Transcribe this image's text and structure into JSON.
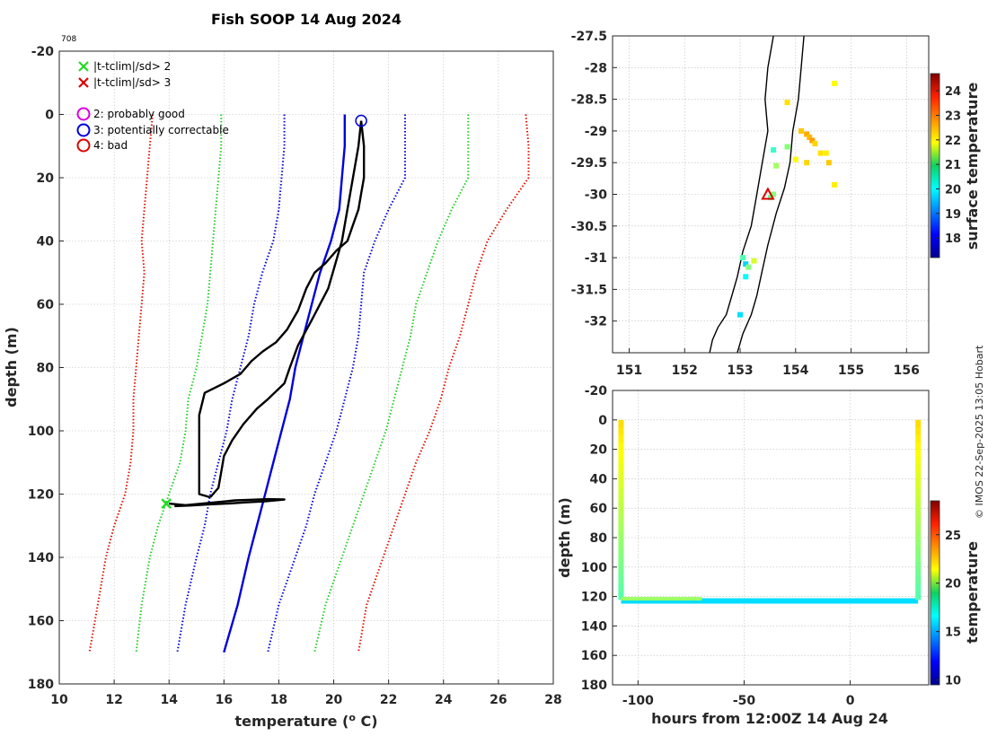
{
  "page": {
    "title": "Fish SOOP 14 Aug 2024",
    "profile_id": "708",
    "credit": "© IMOS 22-Sep-2025 13:05 Hobart"
  },
  "colors": {
    "black": "#000000",
    "green": "#22cc22",
    "blue": "#0000dd",
    "red": "#dd1100",
    "magenta": "#dd00dd",
    "triangle_red": "#dd0000"
  },
  "legend": {
    "items": [
      {
        "marker": "x",
        "color": "#22dd22",
        "label": "|t-tclim|/sd> 2"
      },
      {
        "marker": "x",
        "color": "#dd0000",
        "label": "|t-tclim|/sd> 3"
      },
      {
        "marker": "o",
        "color": "#dd00dd",
        "label": "2: probably good"
      },
      {
        "marker": "o",
        "color": "#0000dd",
        "label": "3: potentially correctable"
      },
      {
        "marker": "o",
        "color": "#dd0000",
        "label": "4: bad"
      }
    ]
  },
  "chart_data": [
    {
      "type": "line",
      "name": "profile",
      "xlabel": "temperature (° C)",
      "ylabel": "depth (m)",
      "xlim": [
        10,
        28
      ],
      "ylim": [
        -20,
        180
      ],
      "y_reversed": true,
      "xticks": [
        10,
        12,
        14,
        16,
        18,
        20,
        22,
        24,
        26,
        28
      ],
      "yticks": [
        -20,
        0,
        20,
        40,
        60,
        80,
        100,
        120,
        140,
        160,
        180
      ],
      "grid": true,
      "series": [
        {
          "name": "climatology mean",
          "color": "#0000dd",
          "style": "solid",
          "x": [
            20.4,
            20.4,
            20.3,
            20.2,
            19.9,
            19.5,
            19.2,
            18.9,
            18.6,
            18.4,
            18.1,
            17.8,
            17.5,
            17.2,
            16.9,
            16.5,
            16.0
          ],
          "y": [
            0,
            10,
            20,
            30,
            40,
            50,
            60,
            70,
            80,
            90,
            100,
            110,
            120,
            130,
            140,
            155,
            170
          ]
        },
        {
          "name": "mean - 2sd",
          "color": "#0000dd",
          "style": "dotted",
          "x": [
            18.2,
            18.2,
            18.1,
            18.0,
            17.8,
            17.4,
            17.1,
            16.9,
            16.6,
            16.3,
            16.1,
            15.8,
            15.5,
            15.3,
            15.0,
            14.6,
            14.3
          ],
          "y": [
            0,
            10,
            20,
            30,
            40,
            50,
            60,
            70,
            80,
            90,
            100,
            110,
            120,
            130,
            140,
            155,
            170
          ]
        },
        {
          "name": "mean + 2sd",
          "color": "#0000dd",
          "style": "dotted",
          "x": [
            22.6,
            22.6,
            22.6,
            22.0,
            21.5,
            21.1,
            21.0,
            20.9,
            20.7,
            20.4,
            20.1,
            19.7,
            19.3,
            19.0,
            18.6,
            18.0,
            17.6
          ],
          "y": [
            0,
            10,
            20,
            30,
            40,
            50,
            60,
            70,
            80,
            90,
            100,
            110,
            120,
            130,
            140,
            155,
            170
          ]
        },
        {
          "name": "mean - 3sd",
          "color": "#22cc22",
          "style": "dotted",
          "x": [
            15.9,
            15.9,
            15.8,
            15.7,
            15.6,
            15.5,
            15.4,
            15.2,
            15.0,
            14.7,
            14.6,
            14.4,
            14.0,
            13.6,
            13.3,
            13.0,
            12.8
          ],
          "y": [
            0,
            10,
            20,
            30,
            40,
            50,
            60,
            70,
            80,
            90,
            100,
            110,
            120,
            130,
            140,
            155,
            170
          ]
        },
        {
          "name": "mean + 3sd",
          "color": "#22cc22",
          "style": "dotted",
          "x": [
            24.9,
            24.9,
            24.9,
            24.3,
            23.8,
            23.4,
            23.0,
            22.8,
            22.5,
            22.2,
            21.9,
            21.5,
            21.1,
            20.7,
            20.3,
            19.7,
            19.3
          ],
          "y": [
            0,
            10,
            20,
            30,
            40,
            50,
            60,
            70,
            80,
            90,
            100,
            110,
            120,
            130,
            140,
            155,
            170
          ]
        },
        {
          "name": "mean - 4sd",
          "color": "#dd1100",
          "style": "dotted",
          "x": [
            13.4,
            13.3,
            13.2,
            13.1,
            13.0,
            13.1,
            13.0,
            12.9,
            12.8,
            12.7,
            12.7,
            12.6,
            12.4,
            12.0,
            11.7,
            11.4,
            11.1
          ],
          "y": [
            0,
            10,
            20,
            30,
            40,
            50,
            60,
            70,
            80,
            90,
            100,
            110,
            120,
            130,
            140,
            155,
            170
          ]
        },
        {
          "name": "mean + 4sd",
          "color": "#dd1100",
          "style": "dotted",
          "x": [
            27.0,
            27.1,
            27.1,
            26.3,
            25.6,
            25.2,
            24.9,
            24.6,
            24.2,
            23.9,
            23.5,
            23.0,
            22.6,
            22.2,
            21.8,
            21.2,
            20.9
          ],
          "y": [
            0,
            10,
            20,
            30,
            40,
            50,
            60,
            70,
            80,
            90,
            100,
            110,
            120,
            130,
            140,
            155,
            170
          ]
        },
        {
          "name": "profile down",
          "color": "#000000",
          "style": "solid",
          "x": [
            21.0,
            21.1,
            21.1,
            21.0,
            20.9,
            20.7,
            20.5,
            20.1,
            19.7,
            19.3,
            19.0,
            18.7,
            18.3,
            17.9,
            17.4,
            17.0,
            16.6,
            16.0,
            15.3,
            15.1,
            15.1,
            15.1,
            15.5
          ],
          "y": [
            2,
            10,
            20,
            25,
            30,
            35,
            40,
            43,
            47,
            50,
            55,
            62,
            68,
            72,
            75,
            78,
            82,
            85,
            88,
            95,
            110,
            120,
            121
          ]
        },
        {
          "name": "profile up",
          "color": "#000000",
          "style": "solid",
          "x": [
            21.0,
            20.9,
            20.6,
            20.3,
            19.8,
            19.2,
            18.7,
            18.4,
            18.2,
            17.6,
            17.2,
            16.7,
            16.3,
            16.0,
            15.9,
            15.8,
            15.5
          ],
          "y": [
            2,
            10,
            25,
            40,
            55,
            65,
            73,
            80,
            85,
            90,
            93,
            98,
            103,
            108,
            113,
            118,
            121
          ]
        },
        {
          "name": "profile bottom",
          "color": "#000000",
          "style": "solid",
          "x": [
            14.0,
            14.6,
            15.2,
            15.8,
            16.4,
            17.0,
            17.6,
            18.2,
            17.5,
            16.8,
            16.1,
            15.4,
            14.8,
            14.2
          ],
          "y": [
            123,
            123.5,
            123,
            122.5,
            122,
            121.8,
            121.6,
            121.7,
            122.3,
            122.6,
            123,
            123.3,
            123.6,
            123.8
          ]
        }
      ],
      "markers": [
        {
          "type": "circle",
          "color": "#0000dd",
          "x": 21.0,
          "y": 2
        },
        {
          "type": "cross",
          "color": "#22dd22",
          "x": 13.9,
          "y": 123
        }
      ]
    },
    {
      "type": "scatter",
      "name": "map",
      "xlim": [
        150.7,
        156.4
      ],
      "ylim": [
        -32.5,
        -27.5
      ],
      "xticks": [
        151,
        152,
        153,
        154,
        155,
        156
      ],
      "yticks": [
        -27.5,
        -28,
        -28.5,
        -29,
        -29.5,
        -30,
        -30.5,
        -31,
        -31.5,
        -32
      ],
      "grid": true,
      "colorbar": {
        "label": "surface temperature",
        "range": [
          17.2,
          24.7
        ],
        "ticks": [
          18,
          19,
          20,
          21,
          22,
          23,
          24
        ]
      },
      "coastline": {
        "lon": [
          153.6,
          153.5,
          153.45,
          153.5,
          153.4,
          153.3,
          153.2,
          153.05,
          152.95,
          152.85,
          152.75,
          152.6,
          152.5,
          152.45
        ],
        "lat": [
          -27.5,
          -28.0,
          -28.5,
          -29.0,
          -29.5,
          -30.0,
          -30.5,
          -30.9,
          -31.3,
          -31.6,
          -31.9,
          -32.1,
          -32.3,
          -32.5
        ]
      },
      "shelf_edge": {
        "lon": [
          154.15,
          154.1,
          154.05,
          153.95,
          153.9,
          153.8,
          153.65,
          153.5,
          153.4,
          153.3,
          153.2,
          153.05,
          152.95
        ],
        "lat": [
          -27.5,
          -28.0,
          -28.5,
          -29.0,
          -29.5,
          -29.9,
          -30.3,
          -30.8,
          -31.2,
          -31.6,
          -31.9,
          -32.2,
          -32.5
        ]
      },
      "points": [
        {
          "lon": 154.2,
          "lat": -29.05,
          "t": 22.5
        },
        {
          "lon": 154.25,
          "lat": -29.1,
          "t": 22.4
        },
        {
          "lon": 154.3,
          "lat": -29.15,
          "t": 22.6
        },
        {
          "lon": 154.1,
          "lat": -29.0,
          "t": 22.3
        },
        {
          "lon": 154.35,
          "lat": -29.2,
          "t": 22.2
        },
        {
          "lon": 154.45,
          "lat": -29.35,
          "t": 22.1
        },
        {
          "lon": 154.55,
          "lat": -29.35,
          "t": 22.0
        },
        {
          "lon": 154.0,
          "lat": -29.45,
          "t": 21.9
        },
        {
          "lon": 154.2,
          "lat": -29.5,
          "t": 22.2
        },
        {
          "lon": 154.6,
          "lat": -29.5,
          "t": 22.3
        },
        {
          "lon": 154.7,
          "lat": -29.85,
          "t": 22.0
        },
        {
          "lon": 154.7,
          "lat": -28.25,
          "t": 21.9
        },
        {
          "lon": 153.85,
          "lat": -28.55,
          "t": 22.1
        },
        {
          "lon": 153.85,
          "lat": -29.25,
          "t": 21.0
        },
        {
          "lon": 153.6,
          "lat": -29.3,
          "t": 20.4
        },
        {
          "lon": 153.65,
          "lat": -29.55,
          "t": 21.2
        },
        {
          "lon": 153.55,
          "lat": -30.05,
          "t": 20.8
        },
        {
          "lon": 153.6,
          "lat": -30.0,
          "t": 21.0
        },
        {
          "lon": 153.05,
          "lat": -31.0,
          "t": 20.6
        },
        {
          "lon": 153.1,
          "lat": -31.1,
          "t": 19.7
        },
        {
          "lon": 153.15,
          "lat": -31.15,
          "t": 21.0
        },
        {
          "lon": 153.1,
          "lat": -31.3,
          "t": 20.0
        },
        {
          "lon": 153.25,
          "lat": -31.05,
          "t": 21.6
        },
        {
          "lon": 153.0,
          "lat": -31.9,
          "t": 19.8
        }
      ],
      "markers": [
        {
          "type": "triangle",
          "color": "#dd0000",
          "lon": 153.5,
          "lat": -30.0
        }
      ]
    },
    {
      "type": "scatter",
      "name": "time-depth",
      "xlabel": "hours from 12:00Z 14 Aug 24",
      "ylabel": "depth (m)",
      "xlim": [
        -112,
        37
      ],
      "ylim": [
        -20,
        180
      ],
      "y_reversed": true,
      "xticks": [
        -100,
        -50,
        0
      ],
      "yticks": [
        -20,
        0,
        20,
        40,
        60,
        80,
        100,
        120,
        140,
        160,
        180
      ],
      "grid": true,
      "colorbar": {
        "label": "temperature",
        "range": [
          9.5,
          28.5
        ],
        "ticks": [
          10,
          15,
          20,
          25
        ]
      },
      "segments": [
        {
          "name": "descent 1",
          "hours": -108,
          "depth_range": [
            0,
            122
          ],
          "t_top": 22,
          "t_bottom": 18
        },
        {
          "name": "bottom track",
          "hours_range": [
            -108,
            32
          ],
          "depth": 123,
          "t": 16
        },
        {
          "name": "ascent 2",
          "hours": 32,
          "depth_range": [
            0,
            122
          ],
          "t_top": 22,
          "t_bottom": 18
        }
      ]
    }
  ]
}
